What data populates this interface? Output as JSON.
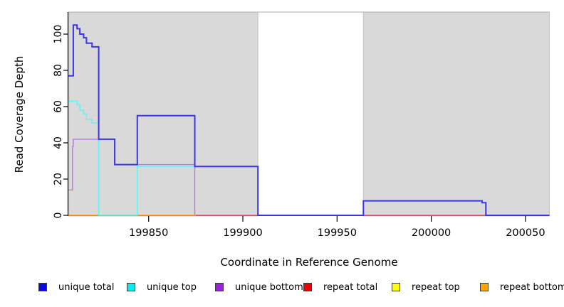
{
  "chart_data": {
    "type": "line",
    "subtype": "step-after-coverage-plot",
    "title": "",
    "xlabel": "Coordinate in Reference Genome",
    "ylabel": "Read Coverage Depth",
    "x_domain": [
      199807.4,
      200062.7
    ],
    "y_domain": [
      0,
      112.16
    ],
    "x_ticks": [
      199850,
      199900,
      199950,
      200000,
      200050
    ],
    "y_ticks": [
      0,
      20,
      40,
      60,
      80,
      100
    ],
    "grid": false,
    "background": {
      "covered_color": "#d9d9d9",
      "covered_edge_color": "#c3c3c3",
      "covered_regions": [
        [
          199807.4,
          199908
        ],
        [
          199964,
          200062.7
        ]
      ],
      "uncovered_gap_region": [
        199908,
        199964
      ]
    },
    "series": [
      {
        "name": "repeat top",
        "id": "repeat-top",
        "color": "#FFFF00",
        "width": 1.2,
        "end_x": 200062.7,
        "points": [
          [
            199807.4,
            0
          ]
        ]
      },
      {
        "name": "unique bottom",
        "id": "unique-bottom",
        "color": "#BA75EA",
        "width": 1.4,
        "end_x": 200062.7,
        "points": [
          [
            199807.4,
            14
          ],
          [
            199809.6,
            38
          ],
          [
            199810,
            42
          ],
          [
            199832,
            28
          ],
          [
            199874.5,
            0
          ]
        ]
      },
      {
        "name": "repeat total",
        "id": "repeat-total",
        "color": "#E25677",
        "width": 1.2,
        "end_x": 200062.7,
        "points": [
          [
            199807.4,
            0
          ]
        ]
      },
      {
        "name": "repeat bottom",
        "id": "repeat-bottom",
        "color": "#FFA41C",
        "width": 1.4,
        "end_x": 199875,
        "points": [
          [
            199807.4,
            0
          ]
        ]
      },
      {
        "name": "unique top",
        "id": "unique-top",
        "color": "#5FF2F2",
        "width": 1.4,
        "end_x": 200062.7,
        "points": [
          [
            199807.4,
            63
          ],
          [
            199812,
            61
          ],
          [
            199813.5,
            58
          ],
          [
            199815.5,
            56
          ],
          [
            199817,
            53
          ],
          [
            199820,
            51
          ],
          [
            199823.5,
            0
          ],
          [
            199844,
            27
          ],
          [
            199908,
            0
          ],
          [
            199964,
            8
          ],
          [
            200027,
            7
          ],
          [
            200029,
            0
          ]
        ]
      },
      {
        "name": "unique total",
        "id": "unique-total",
        "color": "#3A35E8",
        "width": 2,
        "end_x": 200062.7,
        "points": [
          [
            199807.4,
            77
          ],
          [
            199810,
            105
          ],
          [
            199812,
            103
          ],
          [
            199813.5,
            100
          ],
          [
            199815.5,
            98
          ],
          [
            199817,
            95
          ],
          [
            199820,
            93
          ],
          [
            199823.5,
            42
          ],
          [
            199832,
            28
          ],
          [
            199844,
            55
          ],
          [
            199874.5,
            27
          ],
          [
            199908,
            0
          ],
          [
            199964,
            8
          ],
          [
            200027,
            7
          ],
          [
            200029,
            0
          ]
        ]
      }
    ],
    "legend": {
      "position": "bottom",
      "entries": [
        {
          "label": "unique total",
          "swatch_color": "#0808E8"
        },
        {
          "label": "unique top",
          "swatch_color": "#00EEEE"
        },
        {
          "label": "unique bottom",
          "swatch_color": "#9B22DD"
        },
        {
          "label": "repeat total",
          "swatch_color": "#EE0000"
        },
        {
          "label": "repeat top",
          "swatch_color": "#FFFF00"
        },
        {
          "label": "repeat bottom",
          "swatch_color": "#FFA408"
        }
      ]
    }
  }
}
